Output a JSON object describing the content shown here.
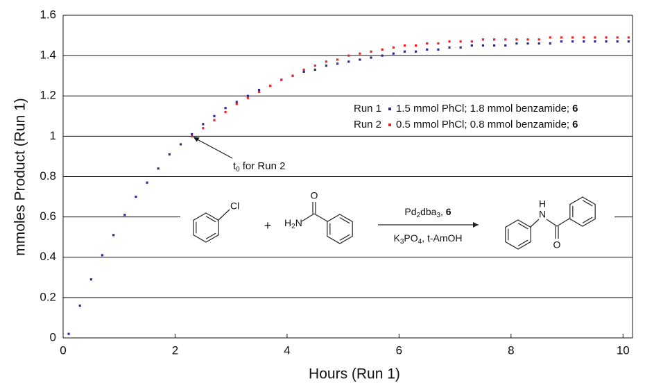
{
  "chart_data": {
    "type": "scatter",
    "xlabel": "Hours (Run 1)",
    "ylabel": "mmoles Product (Run 1)",
    "xlim": [
      0,
      10.17
    ],
    "ylim": [
      0,
      1.6
    ],
    "xticks": [
      0,
      2,
      4,
      6,
      8,
      10
    ],
    "yticks": [
      0,
      0.2,
      0.4,
      0.6,
      0.8,
      1,
      1.2,
      1.4,
      1.6
    ],
    "grid": true,
    "legend_position": "right",
    "series": [
      {
        "name": "Run 1",
        "description": "1.5 mmol PhCl; 1.8 mmol benzamide;",
        "catalyst": "6",
        "color": "#2b2b90",
        "x": [
          0.1,
          0.3,
          0.5,
          0.7,
          0.9,
          1.1,
          1.3,
          1.5,
          1.7,
          1.9,
          2.1,
          2.3,
          2.5,
          2.7,
          2.9,
          3.1,
          3.3,
          3.5,
          3.7,
          3.9,
          4.1,
          4.3,
          4.5,
          4.7,
          4.9,
          5.1,
          5.3,
          5.5,
          5.7,
          5.9,
          6.1,
          6.3,
          6.5,
          6.7,
          6.9,
          7.1,
          7.3,
          7.5,
          7.7,
          7.9,
          8.1,
          8.3,
          8.5,
          8.7,
          8.9,
          9.1,
          9.3,
          9.5,
          9.7,
          9.9,
          10.1
        ],
        "values": [
          0.02,
          0.16,
          0.29,
          0.41,
          0.51,
          0.61,
          0.7,
          0.77,
          0.84,
          0.91,
          0.96,
          1.01,
          1.06,
          1.1,
          1.14,
          1.17,
          1.2,
          1.23,
          1.25,
          1.28,
          1.3,
          1.32,
          1.33,
          1.35,
          1.36,
          1.37,
          1.38,
          1.39,
          1.4,
          1.41,
          1.42,
          1.42,
          1.43,
          1.43,
          1.44,
          1.44,
          1.45,
          1.45,
          1.45,
          1.45,
          1.46,
          1.46,
          1.46,
          1.46,
          1.47,
          1.47,
          1.47,
          1.47,
          1.47,
          1.47,
          1.47
        ]
      },
      {
        "name": "Run 2",
        "description": "0.5 mmol PhCl; 0.8 mmol benzamide;",
        "catalyst": "6",
        "color": "#e8232a",
        "x": [
          2.3,
          2.5,
          2.7,
          2.9,
          3.1,
          3.3,
          3.5,
          3.7,
          3.9,
          4.1,
          4.3,
          4.5,
          4.7,
          4.9,
          5.1,
          5.3,
          5.5,
          5.7,
          5.9,
          6.1,
          6.3,
          6.5,
          6.7,
          6.9,
          7.1,
          7.3,
          7.5,
          7.7,
          7.9,
          8.1,
          8.3,
          8.5,
          8.7,
          8.9,
          9.1,
          9.3,
          9.5,
          9.7,
          9.9,
          10.1
        ],
        "values": [
          1.0,
          1.04,
          1.08,
          1.12,
          1.16,
          1.19,
          1.22,
          1.25,
          1.28,
          1.3,
          1.33,
          1.35,
          1.37,
          1.38,
          1.4,
          1.41,
          1.42,
          1.43,
          1.44,
          1.45,
          1.45,
          1.46,
          1.46,
          1.47,
          1.47,
          1.47,
          1.48,
          1.48,
          1.48,
          1.48,
          1.48,
          1.48,
          1.49,
          1.49,
          1.49,
          1.49,
          1.49,
          1.49,
          1.49,
          1.49
        ]
      }
    ],
    "annotation": {
      "text": "t",
      "subscript": "0",
      "suffix": "for Run 2",
      "x": 2.3,
      "y": 1.0
    },
    "scheme": {
      "chloride": "Cl",
      "plus": "+",
      "amine": [
        "H",
        "2",
        "N"
      ],
      "amide_oxygen": "O",
      "reagents_above": [
        "Pd",
        "2",
        "dba",
        "3",
        ", ",
        "6"
      ],
      "reagents_below": [
        "K",
        "3",
        "PO",
        "4",
        ", t-AmOH"
      ],
      "product_h": "H",
      "product_n": "N",
      "product_oxygen": "O"
    }
  }
}
